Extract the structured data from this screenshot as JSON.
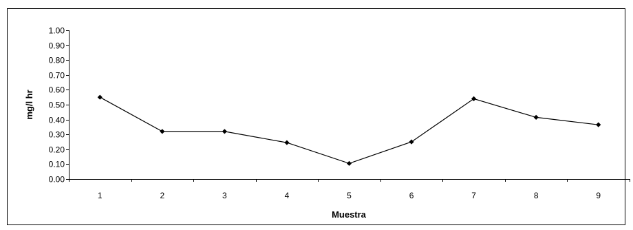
{
  "chart_data": {
    "type": "line",
    "title": "",
    "xlabel": "Muestra",
    "ylabel": "mg/l hr",
    "categories": [
      "1",
      "2",
      "3",
      "4",
      "5",
      "6",
      "7",
      "8",
      "9"
    ],
    "series": [
      {
        "values": [
          0.55,
          0.32,
          0.32,
          0.245,
          0.105,
          0.25,
          0.54,
          0.415,
          0.365
        ]
      }
    ],
    "ylim": [
      0,
      1.0
    ],
    "yticks": [
      "0.00",
      "0.10",
      "0.20",
      "0.30",
      "0.40",
      "0.50",
      "0.60",
      "0.70",
      "0.80",
      "0.90",
      "1.00"
    ],
    "grid": false,
    "legend": "none",
    "colors": {
      "line": "#000000",
      "marker": "#000000",
      "frame": "#000000"
    }
  }
}
